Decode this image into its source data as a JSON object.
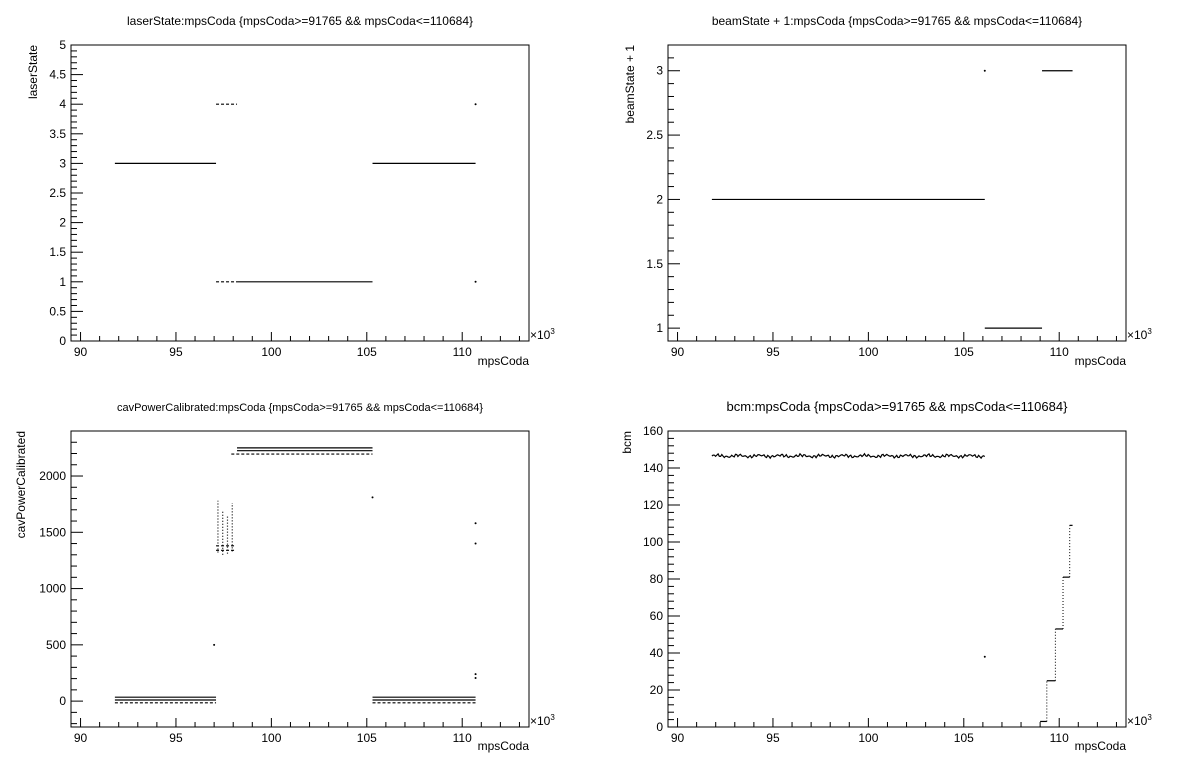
{
  "chart_data": [
    {
      "type": "scatter",
      "title": "laserState:mpsCoda {mpsCoda>=91765 && mpsCoda<=110684}",
      "xlabel": "mpsCoda",
      "ylabel": "laserState",
      "x_multiplier": "×10",
      "x_multiplier_exp": "3",
      "xlim": [
        89.5,
        113.5
      ],
      "ylim": [
        0,
        5
      ],
      "x_ticks": [
        90,
        95,
        100,
        105,
        110
      ],
      "y_ticks": [
        0,
        0.5,
        1,
        1.5,
        2,
        2.5,
        3,
        3.5,
        4,
        4.5,
        5
      ],
      "segments": [
        {
          "x": [
            91.8,
            97.1
          ],
          "y": 3
        },
        {
          "x": [
            105.3,
            110.7
          ],
          "y": 3
        },
        {
          "x": [
            97.1,
            98.2
          ],
          "y": 4,
          "dashed": true
        },
        {
          "x": [
            97.1,
            98.2
          ],
          "y": 1,
          "dashed": true
        },
        {
          "x": [
            98.2,
            105.3
          ],
          "y": 1
        }
      ],
      "points": [
        {
          "x": 110.7,
          "y": 4
        },
        {
          "x": 110.7,
          "y": 1
        }
      ]
    },
    {
      "type": "scatter",
      "title": "beamState + 1:mpsCoda {mpsCoda>=91765 && mpsCoda<=110684}",
      "xlabel": "mpsCoda",
      "ylabel": "beamState + 1",
      "x_multiplier": "×10",
      "x_multiplier_exp": "3",
      "xlim": [
        89.5,
        113.5
      ],
      "ylim": [
        0.9,
        3.2
      ],
      "x_ticks": [
        90,
        95,
        100,
        105,
        110
      ],
      "y_ticks": [
        1,
        1.5,
        2,
        2.5,
        3
      ],
      "segments": [
        {
          "x": [
            91.8,
            106.1
          ],
          "y": 2
        },
        {
          "x": [
            106.1,
            109.1
          ],
          "y": 1
        },
        {
          "x": [
            109.1,
            110.7
          ],
          "y": 3
        }
      ],
      "points": [
        {
          "x": 106.1,
          "y": 3
        }
      ]
    },
    {
      "type": "scatter",
      "title": "cavPowerCalibrated:mpsCoda {mpsCoda>=91765 && mpsCoda<=110684}",
      "xlabel": "mpsCoda",
      "ylabel": "cavPowerCalibrated",
      "x_multiplier": "×10",
      "x_multiplier_exp": "3",
      "xlim": [
        89.5,
        113.5
      ],
      "ylim": [
        -230,
        2400
      ],
      "x_ticks": [
        90,
        95,
        100,
        105,
        110
      ],
      "y_ticks": [
        0,
        500,
        1000,
        1500,
        2000
      ],
      "segments": [
        {
          "x": [
            91.8,
            97.1
          ],
          "y": 35
        },
        {
          "x": [
            91.8,
            97.1
          ],
          "y": 10
        },
        {
          "x": [
            91.8,
            97.1
          ],
          "y": -15,
          "dashed": true
        },
        {
          "x": [
            105.3,
            110.7
          ],
          "y": 35
        },
        {
          "x": [
            105.3,
            110.7
          ],
          "y": 10
        },
        {
          "x": [
            105.3,
            110.7
          ],
          "y": -15,
          "dashed": true
        },
        {
          "x": [
            98.2,
            105.3
          ],
          "y": 2250
        },
        {
          "x": [
            98.2,
            105.3
          ],
          "y": 2225
        },
        {
          "x": [
            97.9,
            105.3
          ],
          "y": 2195,
          "dashed": true
        },
        {
          "x": [
            97.1,
            98.1
          ],
          "y": 1380,
          "dashed": true
        },
        {
          "x": [
            97.1,
            98.1
          ],
          "y": 1340,
          "dashed": true
        }
      ],
      "vertical_clusters": [
        {
          "x": 97.2,
          "y": [
            1320,
            1780
          ]
        },
        {
          "x": 97.45,
          "y": [
            1300,
            1700
          ]
        },
        {
          "x": 97.7,
          "y": [
            1310,
            1650
          ]
        },
        {
          "x": 97.95,
          "y": [
            1330,
            1760
          ]
        }
      ],
      "points": [
        {
          "x": 97.0,
          "y": 500
        },
        {
          "x": 105.3,
          "y": 1810
        },
        {
          "x": 110.7,
          "y": 1580
        },
        {
          "x": 110.7,
          "y": 1400
        },
        {
          "x": 110.7,
          "y": 240
        },
        {
          "x": 110.7,
          "y": 205
        }
      ]
    },
    {
      "type": "line",
      "title": "bcm:mpsCoda {mpsCoda>=91765 && mpsCoda<=110684}",
      "xlabel": "mpsCoda",
      "ylabel": "bcm",
      "x_multiplier": "×10",
      "x_multiplier_exp": "3",
      "xlim": [
        89.5,
        113.5
      ],
      "ylim": [
        0,
        160
      ],
      "x_ticks": [
        90,
        95,
        100,
        105,
        110
      ],
      "y_ticks": [
        0,
        20,
        40,
        60,
        80,
        100,
        120,
        140,
        160
      ],
      "noisy_band": {
        "x": [
          91.8,
          106.1
        ],
        "y": 146.5,
        "amplitude": 0.9
      },
      "steps": [
        {
          "x": [
            109.0,
            109.35
          ],
          "y": 3
        },
        {
          "x": [
            109.35,
            109.8
          ],
          "y": 25
        },
        {
          "x": [
            109.8,
            110.2
          ],
          "y": 53
        },
        {
          "x": [
            110.2,
            110.55
          ],
          "y": 81
        },
        {
          "x": [
            110.55,
            110.7
          ],
          "y": 109
        }
      ],
      "points": [
        {
          "x": 106.1,
          "y": 38
        }
      ]
    }
  ]
}
